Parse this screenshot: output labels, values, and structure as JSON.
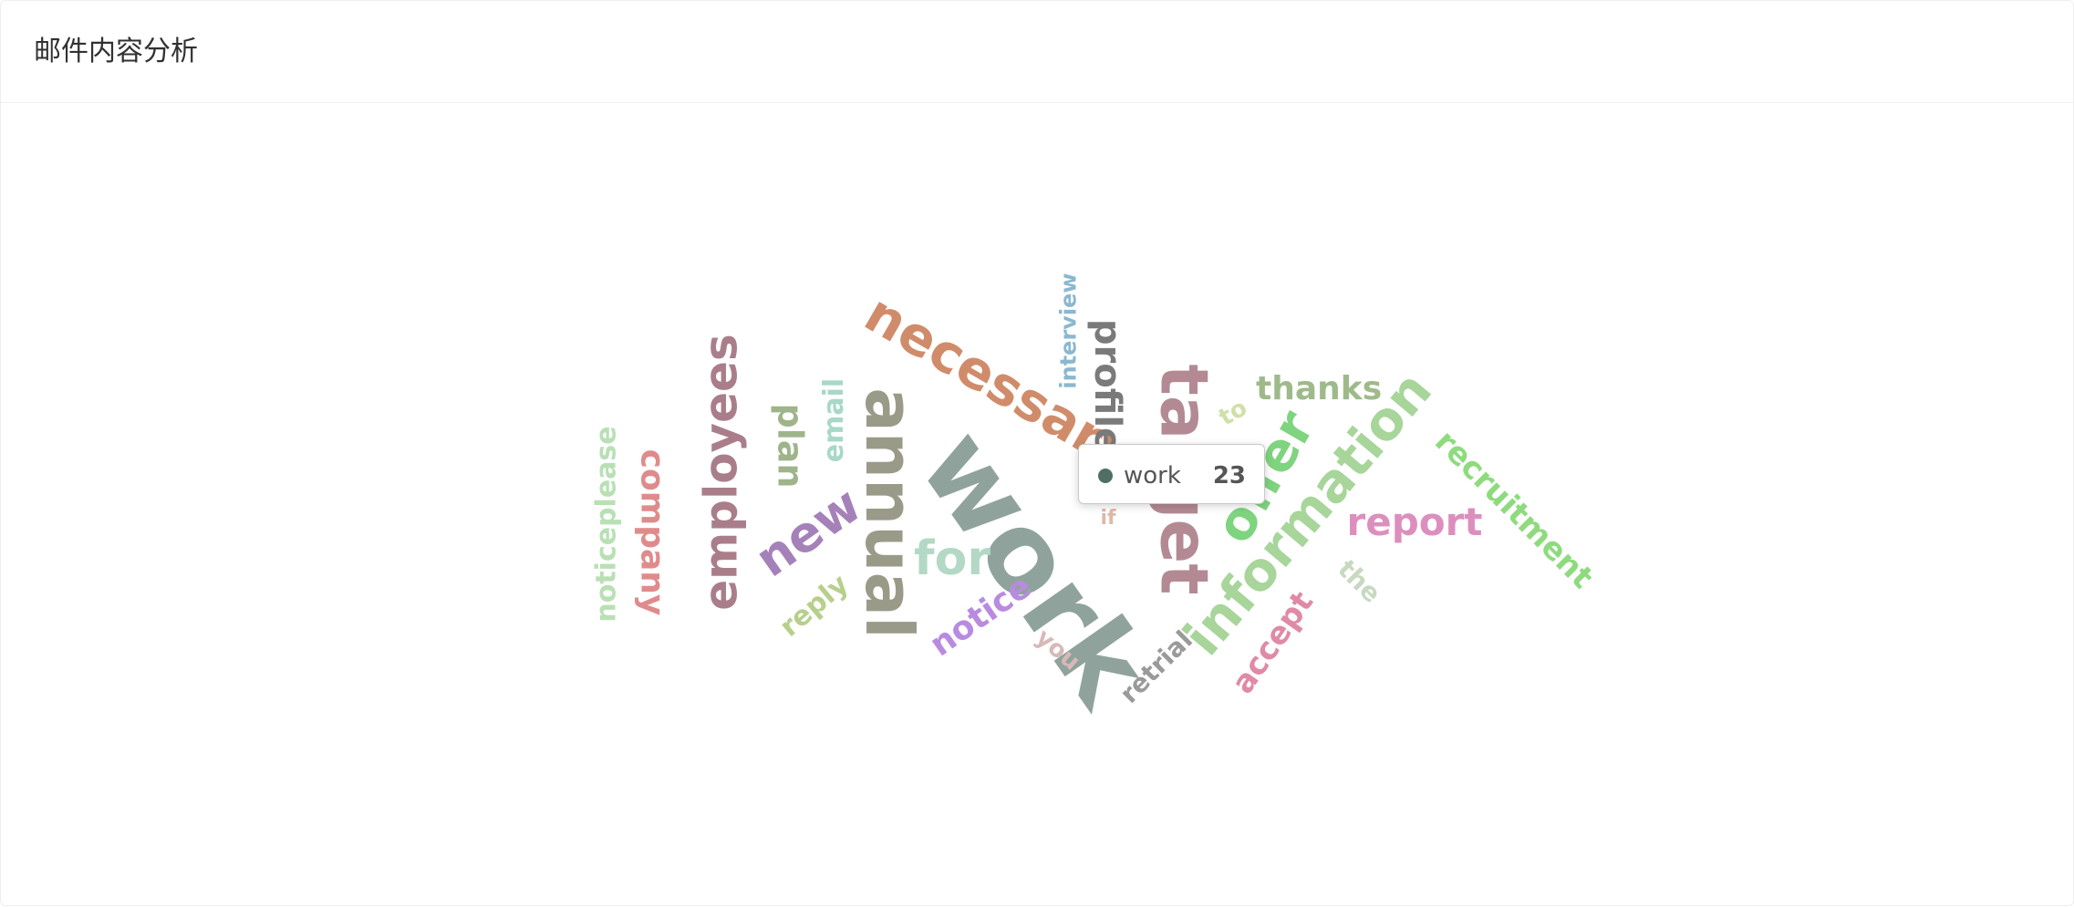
{
  "page_title": "邮件内容分析",
  "chart_data": {
    "type": "wordcloud",
    "words": [
      {
        "text": "work",
        "color": "#8fa39c"
      },
      {
        "text": "target",
        "color": "#b38a94"
      },
      {
        "text": "annual",
        "color": "#9a9a88"
      },
      {
        "text": "information",
        "color": "#a7d59a"
      },
      {
        "text": "necessary",
        "color": "#d08c6a"
      },
      {
        "text": "employees",
        "color": "#a97e8a"
      },
      {
        "text": "offer",
        "color": "#7fd47f"
      },
      {
        "text": "profile",
        "color": "#7a7a7a"
      },
      {
        "text": "company",
        "color": "#e08b8b"
      },
      {
        "text": "new",
        "color": "#a581b9"
      },
      {
        "text": "for",
        "color": "#b3d8c5"
      },
      {
        "text": "report",
        "color": "#dc8fbe"
      },
      {
        "text": "recruitment",
        "color": "#8edb7e"
      },
      {
        "text": "noticeplease",
        "color": "#b9e0b5"
      },
      {
        "text": "notice",
        "color": "#b88be0"
      },
      {
        "text": "thanks",
        "color": "#9fba8a"
      },
      {
        "text": "plan",
        "color": "#9fb48a"
      },
      {
        "text": "email",
        "color": "#a7d8c8"
      },
      {
        "text": "accept",
        "color": "#e08aa7"
      },
      {
        "text": "reply",
        "color": "#b7cf8c"
      },
      {
        "text": "interview",
        "color": "#8ab8cf"
      },
      {
        "text": "retrial",
        "color": "#9a9a9a"
      },
      {
        "text": "you",
        "color": "#d9b8b8"
      },
      {
        "text": "the",
        "color": "#c7d9c0"
      },
      {
        "text": "to",
        "color": "#cfe0a8"
      },
      {
        "text": "if",
        "color": "#e0b8a8"
      }
    ]
  },
  "tooltip": {
    "name": "work",
    "value": "23",
    "dot_color": "#4f6f64"
  }
}
